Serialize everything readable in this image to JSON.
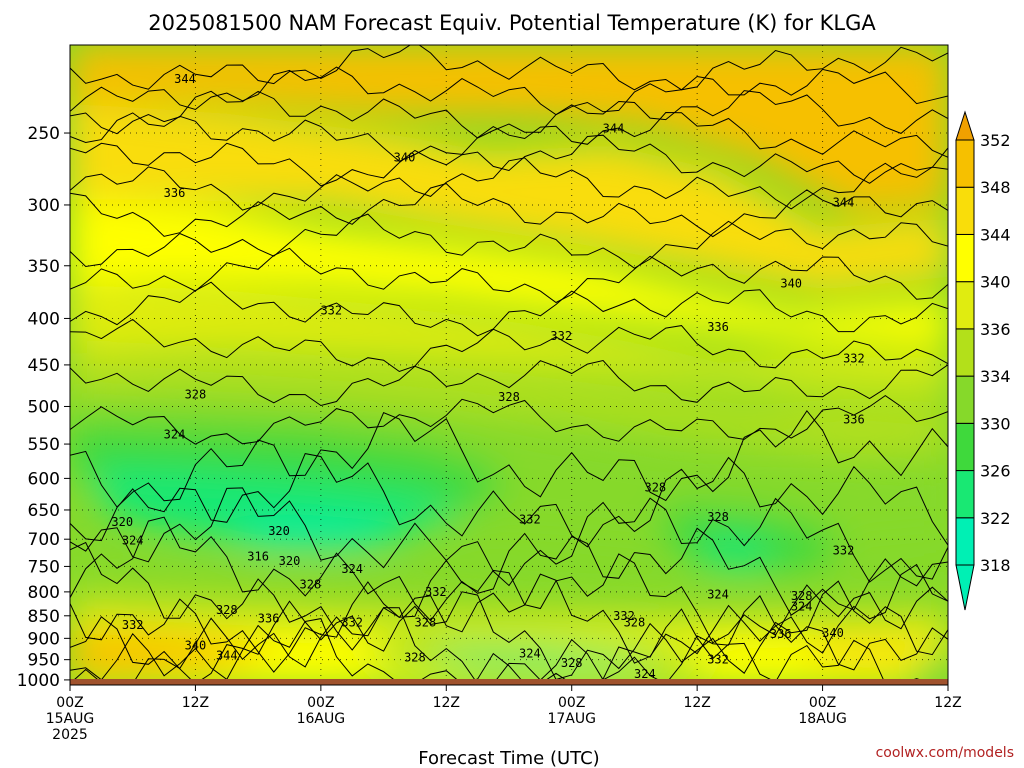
{
  "chart_data": {
    "type": "heatmap",
    "title": "2025081500 NAM Forecast Equiv. Potential Temperature (K) for KLGA",
    "xlabel": "Forecast Time (UTC)",
    "ylabel": "",
    "x_hours": [
      0,
      12,
      24,
      36,
      48,
      60,
      72,
      84
    ],
    "x_tick_labels": [
      [
        "00Z",
        "15AUG",
        "2025"
      ],
      [
        "12Z"
      ],
      [
        "00Z",
        "16AUG"
      ],
      [
        "12Z"
      ],
      [
        "00Z",
        "17AUG"
      ],
      [
        "12Z"
      ],
      [
        "00Z",
        "18AUG"
      ],
      [
        "12Z"
      ]
    ],
    "y_ticks_hpa": [
      250,
      300,
      350,
      400,
      450,
      500,
      550,
      600,
      650,
      700,
      750,
      800,
      850,
      900,
      950,
      1000
    ],
    "ylim_hpa": [
      200,
      1013
    ],
    "y_log_scale": true,
    "grid": true,
    "colorbar_levels_K": [
      318,
      322,
      326,
      330,
      334,
      336,
      340,
      344,
      348,
      352
    ],
    "colorbar_colors": [
      "#00f0b4",
      "#19e873",
      "#3fd93c",
      "#86d92a",
      "#b3e01a",
      "#e0ec10",
      "#ffff00",
      "#f9dd0a",
      "#f6c000",
      "#f0a000"
    ],
    "contour_labels": [
      {
        "t": 11,
        "p": 218,
        "v": "344"
      },
      {
        "t": 32,
        "p": 266,
        "v": "340"
      },
      {
        "t": 52,
        "p": 247,
        "v": "344"
      },
      {
        "t": 10,
        "p": 291,
        "v": "336"
      },
      {
        "t": 74,
        "p": 298,
        "v": "344"
      },
      {
        "t": 25,
        "p": 392,
        "v": "332"
      },
      {
        "t": 47,
        "p": 418,
        "v": "332"
      },
      {
        "t": 69,
        "p": 366,
        "v": "340"
      },
      {
        "t": 62,
        "p": 409,
        "v": "336"
      },
      {
        "t": 12,
        "p": 485,
        "v": "328"
      },
      {
        "t": 42,
        "p": 488,
        "v": "328"
      },
      {
        "t": 75,
        "p": 443,
        "v": "332"
      },
      {
        "t": 10,
        "p": 537,
        "v": "324"
      },
      {
        "t": 75,
        "p": 517,
        "v": "336"
      },
      {
        "t": 56,
        "p": 614,
        "v": "328"
      },
      {
        "t": 62,
        "p": 662,
        "v": "328"
      },
      {
        "t": 44,
        "p": 666,
        "v": "332"
      },
      {
        "t": 5,
        "p": 670,
        "v": "320"
      },
      {
        "t": 6,
        "p": 702,
        "v": "324"
      },
      {
        "t": 20,
        "p": 686,
        "v": "320"
      },
      {
        "t": 18,
        "p": 731,
        "v": "316"
      },
      {
        "t": 21,
        "p": 740,
        "v": "320"
      },
      {
        "t": 27,
        "p": 755,
        "v": "324"
      },
      {
        "t": 23,
        "p": 785,
        "v": "328"
      },
      {
        "t": 35,
        "p": 800,
        "v": "332"
      },
      {
        "t": 74,
        "p": 720,
        "v": "332"
      },
      {
        "t": 62,
        "p": 805,
        "v": "324"
      },
      {
        "t": 70,
        "p": 808,
        "v": "328"
      },
      {
        "t": 70,
        "p": 830,
        "v": "324"
      },
      {
        "t": 15,
        "p": 838,
        "v": "328"
      },
      {
        "t": 19,
        "p": 856,
        "v": "336"
      },
      {
        "t": 6,
        "p": 870,
        "v": "332"
      },
      {
        "t": 27,
        "p": 865,
        "v": "332"
      },
      {
        "t": 34,
        "p": 865,
        "v": "328"
      },
      {
        "t": 53,
        "p": 850,
        "v": "332"
      },
      {
        "t": 54,
        "p": 865,
        "v": "328"
      },
      {
        "t": 68,
        "p": 890,
        "v": "336"
      },
      {
        "t": 73,
        "p": 888,
        "v": "340"
      },
      {
        "t": 12,
        "p": 917,
        "v": "340"
      },
      {
        "t": 15,
        "p": 940,
        "v": "344"
      },
      {
        "t": 33,
        "p": 945,
        "v": "328"
      },
      {
        "t": 44,
        "p": 935,
        "v": "324"
      },
      {
        "t": 48,
        "p": 958,
        "v": "328"
      },
      {
        "t": 55,
        "p": 985,
        "v": "324"
      },
      {
        "t": 62,
        "p": 950,
        "v": "332"
      }
    ],
    "credit": "coolwx.com/models"
  }
}
